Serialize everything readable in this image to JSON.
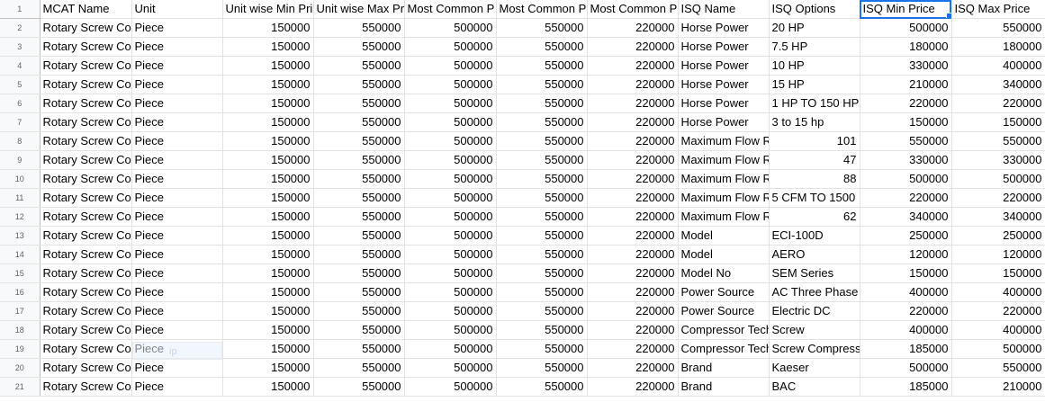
{
  "sheet": {
    "row_numbers": [
      "1",
      "2",
      "3",
      "4",
      "5",
      "6",
      "7",
      "8",
      "9",
      "10",
      "11",
      "12",
      "13",
      "14",
      "15",
      "16",
      "17",
      "18",
      "19",
      "20",
      "21"
    ],
    "headers": [
      "MCAT Name",
      "Unit",
      "Unit wise Min Pri",
      "Unit wise Max Pr",
      "Most Common P",
      "Most Common P",
      "Most Common P",
      "ISQ Name",
      "ISQ Options",
      "ISQ Min Price",
      "ISQ Max Price"
    ],
    "rows": [
      [
        "Rotary Screw Co",
        "Piece",
        "150000",
        "550000",
        "500000",
        "550000",
        "220000",
        "Horse Power",
        "20 HP",
        "500000",
        "550000"
      ],
      [
        "Rotary Screw Co",
        "Piece",
        "150000",
        "550000",
        "500000",
        "550000",
        "220000",
        "Horse Power",
        "7.5 HP",
        "180000",
        "180000"
      ],
      [
        "Rotary Screw Co",
        "Piece",
        "150000",
        "550000",
        "500000",
        "550000",
        "220000",
        "Horse Power",
        "10 HP",
        "330000",
        "400000"
      ],
      [
        "Rotary Screw Co",
        "Piece",
        "150000",
        "550000",
        "500000",
        "550000",
        "220000",
        "Horse Power",
        "15 HP",
        "210000",
        "340000"
      ],
      [
        "Rotary Screw Co",
        "Piece",
        "150000",
        "550000",
        "500000",
        "550000",
        "220000",
        "Horse Power",
        "1 HP TO 150 HP",
        "220000",
        "220000"
      ],
      [
        "Rotary Screw Co",
        "Piece",
        "150000",
        "550000",
        "500000",
        "550000",
        "220000",
        "Horse Power",
        "3 to 15 hp",
        "150000",
        "150000"
      ],
      [
        "Rotary Screw Co",
        "Piece",
        "150000",
        "550000",
        "500000",
        "550000",
        "220000",
        "Maximum Flow R",
        "101",
        "550000",
        "550000"
      ],
      [
        "Rotary Screw Co",
        "Piece",
        "150000",
        "550000",
        "500000",
        "550000",
        "220000",
        "Maximum Flow R",
        "47",
        "330000",
        "330000"
      ],
      [
        "Rotary Screw Co",
        "Piece",
        "150000",
        "550000",
        "500000",
        "550000",
        "220000",
        "Maximum Flow R",
        "88",
        "500000",
        "500000"
      ],
      [
        "Rotary Screw Co",
        "Piece",
        "150000",
        "550000",
        "500000",
        "550000",
        "220000",
        "Maximum Flow R",
        "5 CFM TO 1500",
        "220000",
        "220000"
      ],
      [
        "Rotary Screw Co",
        "Piece",
        "150000",
        "550000",
        "500000",
        "550000",
        "220000",
        "Maximum Flow R",
        "62",
        "340000",
        "340000"
      ],
      [
        "Rotary Screw Co",
        "Piece",
        "150000",
        "550000",
        "500000",
        "550000",
        "220000",
        "Model",
        "ECI-100D",
        "250000",
        "250000"
      ],
      [
        "Rotary Screw Co",
        "Piece",
        "150000",
        "550000",
        "500000",
        "550000",
        "220000",
        "Model",
        "AERO",
        "120000",
        "120000"
      ],
      [
        "Rotary Screw Co",
        "Piece",
        "150000",
        "550000",
        "500000",
        "550000",
        "220000",
        "Model No",
        "SEM Series",
        "150000",
        "150000"
      ],
      [
        "Rotary Screw Co",
        "Piece",
        "150000",
        "550000",
        "500000",
        "550000",
        "220000",
        "Power Source",
        "AC Three Phase",
        "400000",
        "400000"
      ],
      [
        "Rotary Screw Co",
        "Piece",
        "150000",
        "550000",
        "500000",
        "550000",
        "220000",
        "Power Source",
        "Electric DC",
        "220000",
        "220000"
      ],
      [
        "Rotary Screw Co",
        "Piece",
        "150000",
        "550000",
        "500000",
        "550000",
        "220000",
        "Compressor Tech",
        "Screw",
        "400000",
        "400000"
      ],
      [
        "Rotary Screw Co",
        "Piece",
        "150000",
        "550000",
        "500000",
        "550000",
        "220000",
        "Compressor Tech",
        "Screw Compress",
        "185000",
        "500000"
      ],
      [
        "Rotary Screw Co",
        "Piece",
        "150000",
        "550000",
        "500000",
        "550000",
        "220000",
        "Brand",
        "Kaeser",
        "500000",
        "550000"
      ],
      [
        "Rotary Screw Co",
        "Piece",
        "150000",
        "550000",
        "500000",
        "550000",
        "220000",
        "Brand",
        "BAC",
        "185000",
        "210000"
      ]
    ],
    "ghost_text": "ip"
  }
}
